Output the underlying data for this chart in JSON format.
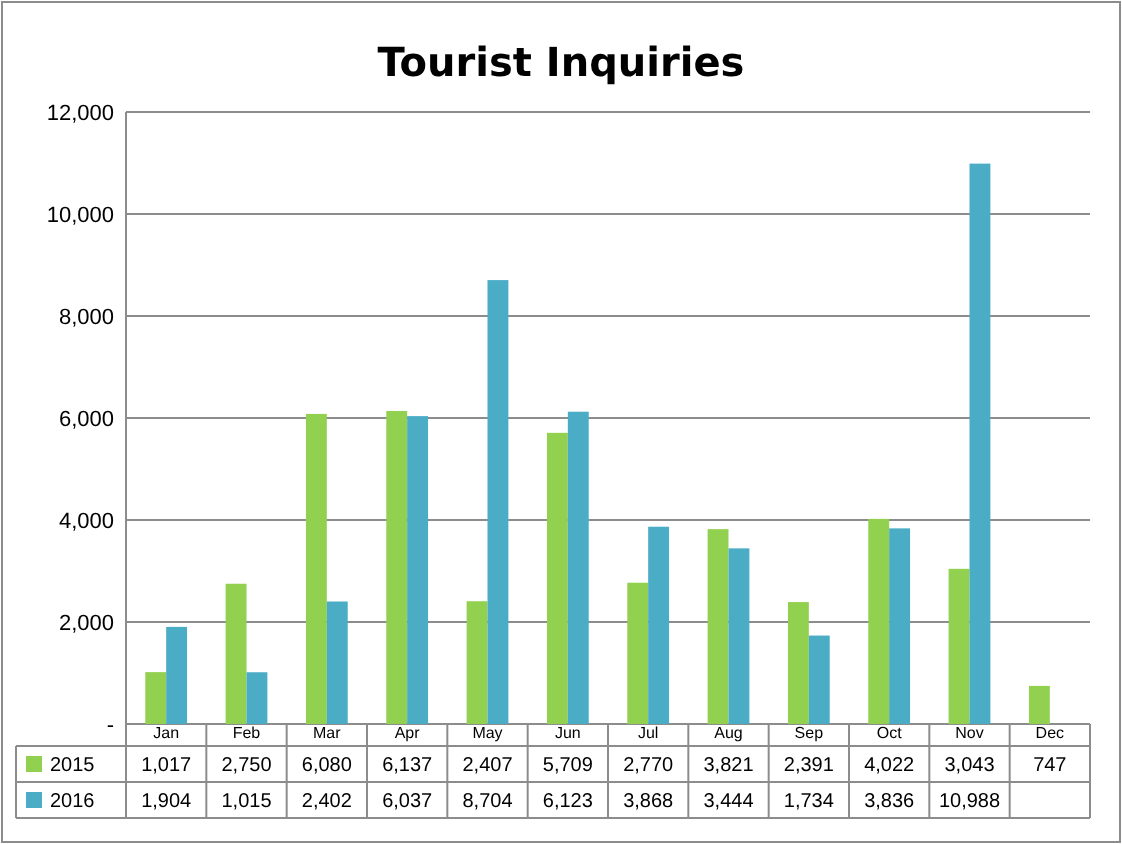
{
  "chart_data": {
    "type": "bar",
    "title": "Tourist Inquiries",
    "categories": [
      "Jan",
      "Feb",
      "Mar",
      "Apr",
      "May",
      "Jun",
      "Jul",
      "Aug",
      "Sep",
      "Oct",
      "Nov",
      "Dec"
    ],
    "series": [
      {
        "name": "2015",
        "color": "#92d050",
        "values": [
          1017,
          2750,
          6080,
          6137,
          2407,
          5709,
          2770,
          3821,
          2391,
          4022,
          3043,
          747
        ],
        "value_labels": [
          "1,017",
          "2,750",
          "6,080",
          "6,137",
          "2,407",
          "5,709",
          "2,770",
          "3,821",
          "2,391",
          "4,022",
          "3,043",
          "747"
        ]
      },
      {
        "name": "2016",
        "color": "#4bacc6",
        "values": [
          1904,
          1015,
          2402,
          6037,
          8704,
          6123,
          3868,
          3444,
          1734,
          3836,
          10988,
          null
        ],
        "value_labels": [
          "1,904",
          "1,015",
          "2,402",
          "6,037",
          "8,704",
          "6,123",
          "3,868",
          "3,444",
          "1,734",
          "3,836",
          "10,988",
          null
        ]
      }
    ],
    "ylim": [
      0,
      12000
    ],
    "yticks": [
      {
        "value": 0,
        "label": "-"
      },
      {
        "value": 2000,
        "label": "2,000"
      },
      {
        "value": 4000,
        "label": "4,000"
      },
      {
        "value": 6000,
        "label": "6,000"
      },
      {
        "value": 8000,
        "label": "8,000"
      },
      {
        "value": 10000,
        "label": "10,000"
      },
      {
        "value": 12000,
        "label": "12,000"
      }
    ],
    "grid": "y",
    "legend": "bottom"
  }
}
